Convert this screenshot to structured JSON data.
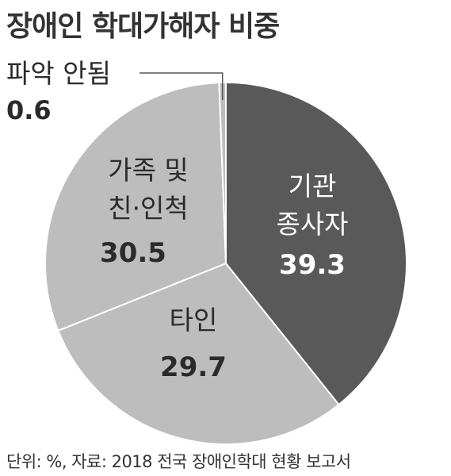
{
  "title": "장애인 학대가해자 비중",
  "footer": "단위: %, 자료: 2018 전국 장애인학대 현황 보고서",
  "colors": {
    "dark": "#595959",
    "light": "#bdbdbd",
    "label_on_dark": "#ffffff",
    "label_on_light": "#2b2b2b",
    "outline": "#ffffff"
  },
  "chart_data": {
    "type": "pie",
    "unit": "%",
    "slices": [
      {
        "name_lines": [
          "기관",
          "종사자"
        ],
        "value": 39.3,
        "value_label": "39.3",
        "color": "#595959"
      },
      {
        "name_lines": [
          "타인"
        ],
        "value": 29.7,
        "value_label": "29.7",
        "color": "#bdbdbd"
      },
      {
        "name_lines": [
          "가족 및",
          "친·인척"
        ],
        "value": 30.5,
        "value_label": "30.5",
        "color": "#bdbdbd"
      },
      {
        "name_lines": [
          "파악 안됨"
        ],
        "value": 0.6,
        "value_label": "0.6",
        "color": "#bdbdbd"
      }
    ]
  }
}
